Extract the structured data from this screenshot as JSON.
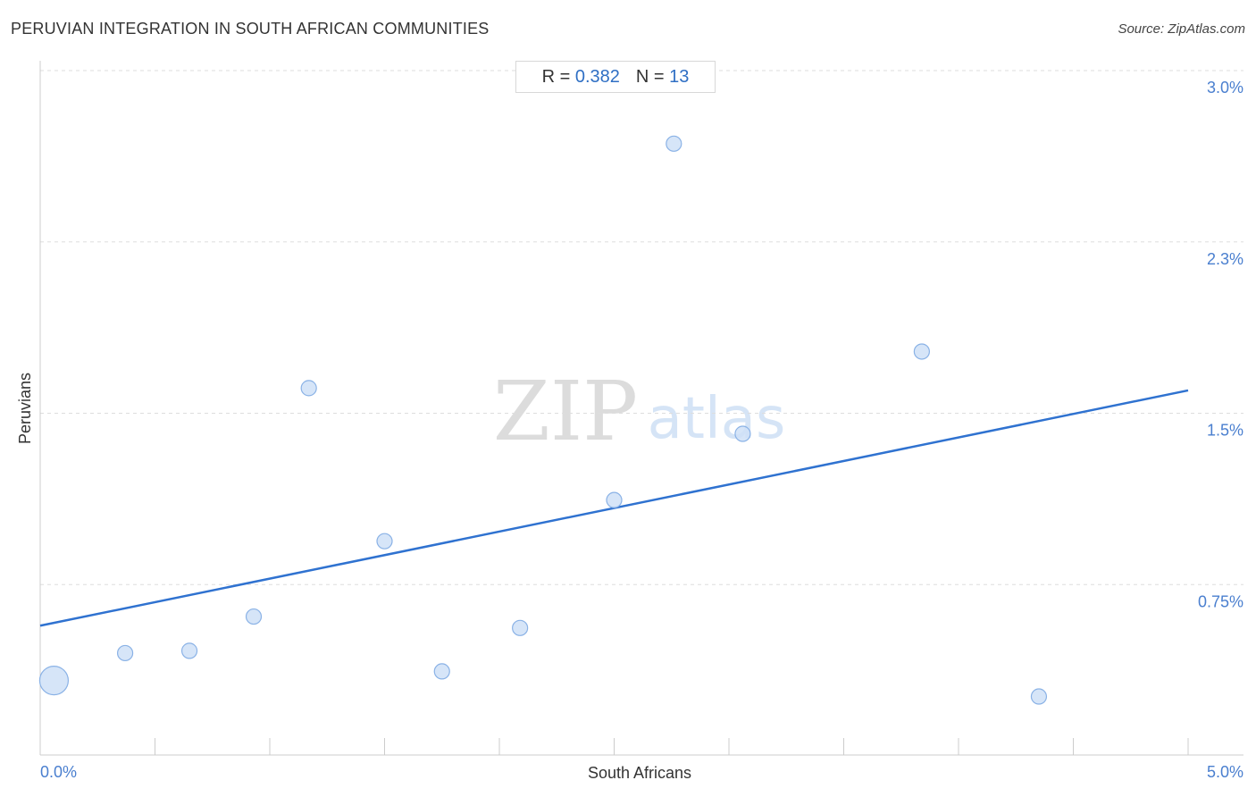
{
  "title": "PERUVIAN INTEGRATION IN SOUTH AFRICAN COMMUNITIES",
  "source": "Source: ZipAtlas.com",
  "stats": {
    "r_label": "R = ",
    "r_value": "0.382",
    "n_label": "N = ",
    "n_value": "13"
  },
  "watermark": {
    "zip": "ZIP",
    "atlas": "atlas"
  },
  "colors": {
    "accent": "#2f72d0",
    "tick_label": "#4a7fcf",
    "point_fill": "#cfe0f7",
    "point_stroke": "#8ab2e6",
    "grid": "#dddddd"
  },
  "chart_data": {
    "type": "scatter",
    "title": "PERUVIAN INTEGRATION IN SOUTH AFRICAN COMMUNITIES",
    "xlabel": "South Africans",
    "ylabel": "Peruvians",
    "xlim": [
      0,
      5.0
    ],
    "ylim": [
      0,
      3.0
    ],
    "x_ticks": [
      {
        "value": 0,
        "label": "0.0%"
      },
      {
        "value": 5.0,
        "label": "5.0%"
      }
    ],
    "y_ticks": [
      {
        "value": 0.75,
        "label": "0.75%"
      },
      {
        "value": 1.5,
        "label": "1.5%"
      },
      {
        "value": 2.25,
        "label": "2.3%"
      },
      {
        "value": 3.0,
        "label": "3.0%"
      }
    ],
    "grid": true,
    "points": [
      {
        "x": 0.06,
        "y": 0.33,
        "size": "large"
      },
      {
        "x": 0.37,
        "y": 0.45,
        "size": "small"
      },
      {
        "x": 0.65,
        "y": 0.46,
        "size": "small"
      },
      {
        "x": 0.93,
        "y": 0.61,
        "size": "small"
      },
      {
        "x": 1.17,
        "y": 1.61,
        "size": "small"
      },
      {
        "x": 1.5,
        "y": 0.94,
        "size": "small"
      },
      {
        "x": 1.75,
        "y": 0.37,
        "size": "small"
      },
      {
        "x": 2.09,
        "y": 0.56,
        "size": "small"
      },
      {
        "x": 2.5,
        "y": 1.12,
        "size": "small"
      },
      {
        "x": 2.76,
        "y": 2.68,
        "size": "small"
      },
      {
        "x": 3.06,
        "y": 1.41,
        "size": "small"
      },
      {
        "x": 3.84,
        "y": 1.77,
        "size": "small"
      },
      {
        "x": 4.35,
        "y": 0.26,
        "size": "small"
      }
    ],
    "trendline": {
      "x": [
        0,
        5.0
      ],
      "y": [
        0.57,
        1.6
      ]
    }
  }
}
